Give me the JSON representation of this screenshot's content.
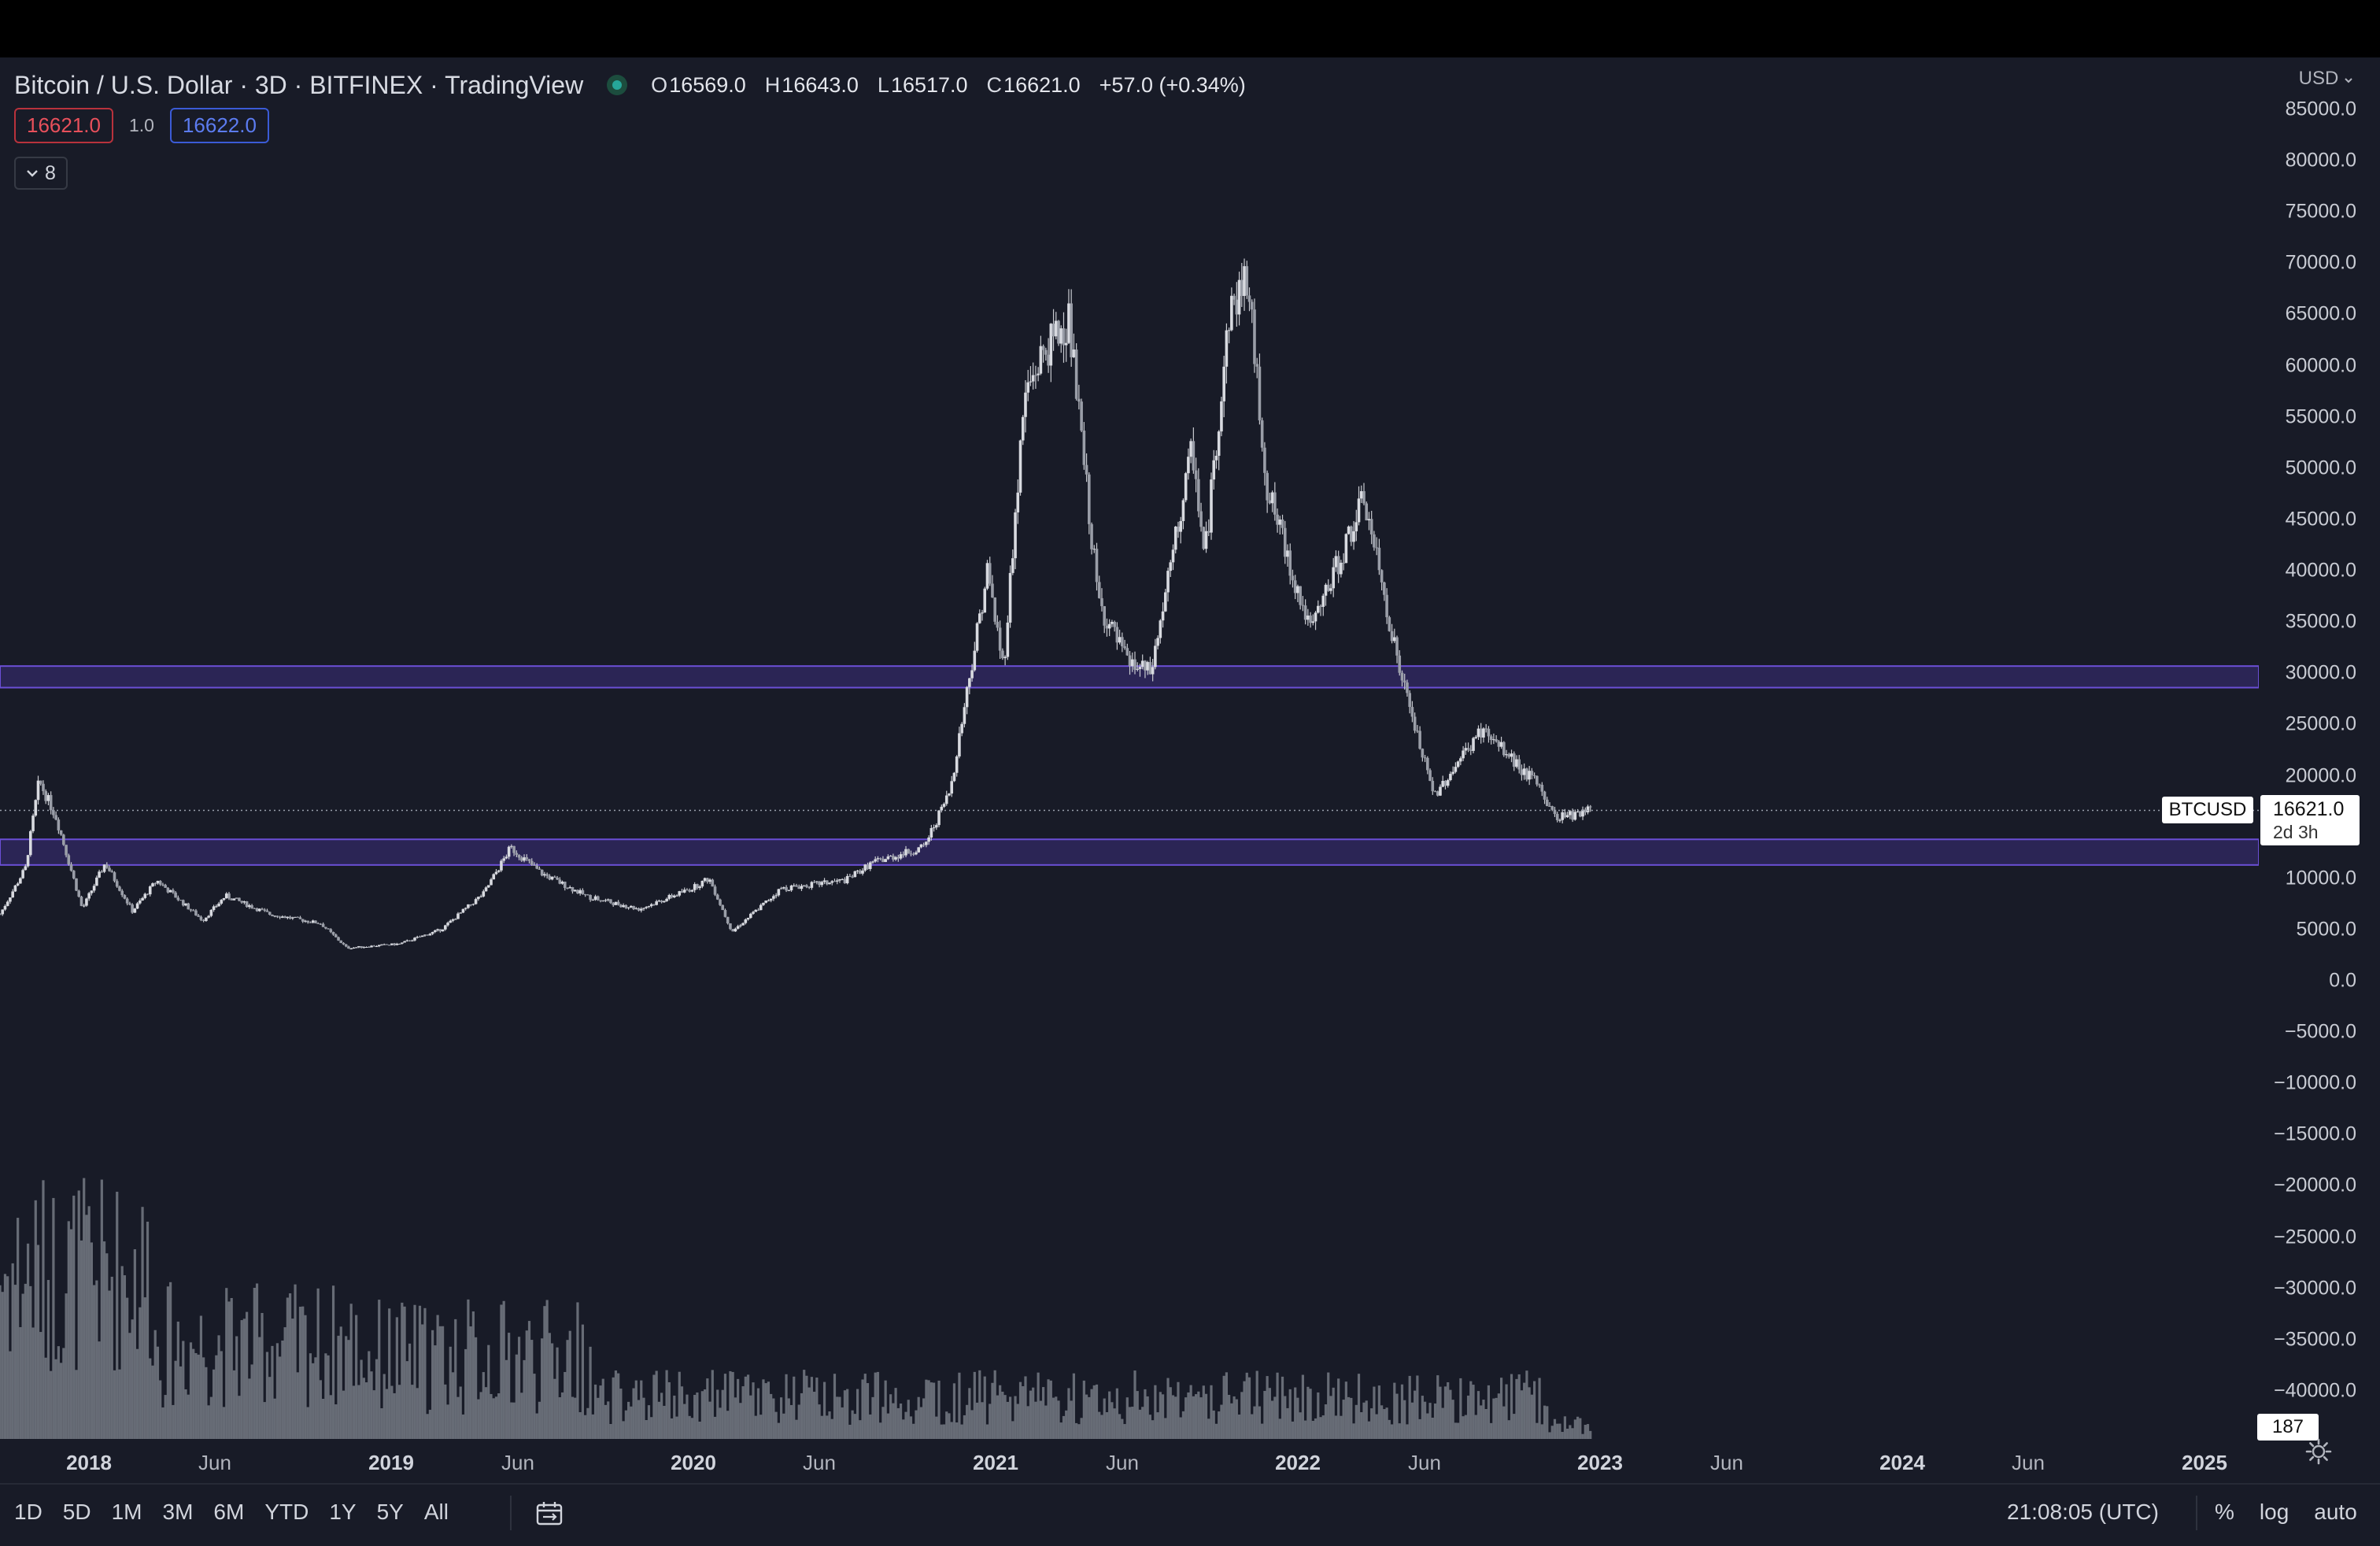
{
  "legend": {
    "title": "Bitcoin / U.S. Dollar · 3D · BITFINEX · TradingView",
    "ohlc": [
      {
        "key": "O",
        "value": "16569.0"
      },
      {
        "key": "H",
        "value": "16643.0"
      },
      {
        "key": "L",
        "value": "16517.0"
      },
      {
        "key": "C",
        "value": "16621.0"
      }
    ],
    "change": "+57.0 (+0.34%)"
  },
  "quote": {
    "sell": "16621.0",
    "spread": "1.0",
    "buy": "16622.0"
  },
  "indicators_toggle": {
    "count": "8"
  },
  "price_axis": {
    "currency": "USD",
    "labels": [
      "85000.0",
      "80000.0",
      "75000.0",
      "70000.0",
      "65000.0",
      "60000.0",
      "55000.0",
      "50000.0",
      "45000.0",
      "40000.0",
      "35000.0",
      "30000.0",
      "25000.0",
      "20000.0",
      "15000.0",
      "10000.0",
      "5000.0",
      "0.0",
      "−5000.0",
      "−10000.0",
      "−15000.0",
      "−20000.0",
      "−25000.0",
      "−30000.0",
      "−35000.0",
      "−40000.0"
    ]
  },
  "badges": {
    "symbol": "BTCUSD",
    "last_price": "16621.0",
    "countdown": "2d 3h",
    "volume": "187"
  },
  "time_axis": {
    "labels": [
      {
        "text": "2018",
        "kind": "year"
      },
      {
        "text": "Jun",
        "kind": "month"
      },
      {
        "text": "2019",
        "kind": "year"
      },
      {
        "text": "Jun",
        "kind": "month"
      },
      {
        "text": "2020",
        "kind": "year"
      },
      {
        "text": "Jun",
        "kind": "month"
      },
      {
        "text": "2021",
        "kind": "year"
      },
      {
        "text": "Jun",
        "kind": "month"
      },
      {
        "text": "2022",
        "kind": "year"
      },
      {
        "text": "Jun",
        "kind": "month"
      },
      {
        "text": "2023",
        "kind": "year"
      },
      {
        "text": "Jun",
        "kind": "month"
      },
      {
        "text": "2024",
        "kind": "year"
      },
      {
        "text": "Jun",
        "kind": "month"
      },
      {
        "text": "2025",
        "kind": "year"
      }
    ]
  },
  "bottom_bar": {
    "ranges": [
      "1D",
      "5D",
      "1M",
      "3M",
      "6M",
      "YTD",
      "1Y",
      "5Y",
      "All"
    ],
    "clock": "21:08:05 (UTC)",
    "options": [
      "%",
      "log",
      "auto"
    ]
  },
  "colors": {
    "background": "#181b27",
    "candles": "#c8cad0",
    "zones": "#5b3fc0",
    "buy": "#3b5bd6",
    "sell": "#b8323c"
  },
  "chart_data": {
    "type": "candlestick",
    "symbol": "BTCUSD",
    "interval": "3D",
    "x_range": [
      "2017-11-01",
      "2025-02-15"
    ],
    "y_range": [
      -42500,
      85000
    ],
    "price_series": [
      {
        "date": "2017-11-01",
        "close": 6500
      },
      {
        "date": "2017-12-01",
        "close": 11000
      },
      {
        "date": "2017-12-17",
        "close": 19500
      },
      {
        "date": "2018-01-06",
        "close": 16000
      },
      {
        "date": "2018-02-06",
        "close": 7000
      },
      {
        "date": "2018-03-05",
        "close": 11500
      },
      {
        "date": "2018-04-06",
        "close": 6800
      },
      {
        "date": "2018-05-05",
        "close": 9800
      },
      {
        "date": "2018-06-28",
        "close": 5900
      },
      {
        "date": "2018-07-25",
        "close": 8300
      },
      {
        "date": "2018-09-15",
        "close": 6500
      },
      {
        "date": "2018-11-14",
        "close": 5600
      },
      {
        "date": "2018-12-15",
        "close": 3200
      },
      {
        "date": "2019-02-15",
        "close": 3600
      },
      {
        "date": "2019-04-05",
        "close": 5000
      },
      {
        "date": "2019-05-25",
        "close": 8500
      },
      {
        "date": "2019-06-26",
        "close": 13000
      },
      {
        "date": "2019-08-01",
        "close": 10500
      },
      {
        "date": "2019-09-25",
        "close": 8200
      },
      {
        "date": "2019-11-25",
        "close": 7000
      },
      {
        "date": "2020-01-25",
        "close": 9000
      },
      {
        "date": "2020-02-15",
        "close": 10000
      },
      {
        "date": "2020-03-13",
        "close": 4800
      },
      {
        "date": "2020-05-10",
        "close": 9000
      },
      {
        "date": "2020-07-25",
        "close": 9800
      },
      {
        "date": "2020-08-25",
        "close": 11500
      },
      {
        "date": "2020-10-25",
        "close": 13000
      },
      {
        "date": "2020-11-25",
        "close": 18500
      },
      {
        "date": "2021-01-08",
        "close": 40000
      },
      {
        "date": "2021-01-27",
        "close": 30500
      },
      {
        "date": "2021-02-21",
        "close": 57000
      },
      {
        "date": "2021-03-13",
        "close": 61000
      },
      {
        "date": "2021-04-14",
        "close": 64500
      },
      {
        "date": "2021-05-19",
        "close": 37000
      },
      {
        "date": "2021-06-22",
        "close": 31000
      },
      {
        "date": "2021-07-20",
        "close": 30000
      },
      {
        "date": "2021-09-07",
        "close": 52000
      },
      {
        "date": "2021-09-21",
        "close": 41000
      },
      {
        "date": "2021-10-20",
        "close": 65000
      },
      {
        "date": "2021-11-10",
        "close": 68800
      },
      {
        "date": "2021-12-04",
        "close": 48000
      },
      {
        "date": "2022-01-24",
        "close": 34000
      },
      {
        "date": "2022-03-28",
        "close": 47000
      },
      {
        "date": "2022-05-10",
        "close": 30000
      },
      {
        "date": "2022-06-18",
        "close": 18000
      },
      {
        "date": "2022-08-14",
        "close": 24500
      },
      {
        "date": "2022-10-20",
        "close": 19000
      },
      {
        "date": "2022-11-09",
        "close": 15800
      },
      {
        "date": "2022-12-20",
        "close": 16621
      }
    ],
    "horizontal_zones": [
      {
        "from": 28600,
        "to": 30700
      },
      {
        "from": 11300,
        "to": 13800
      }
    ],
    "last_price": 16621
  }
}
